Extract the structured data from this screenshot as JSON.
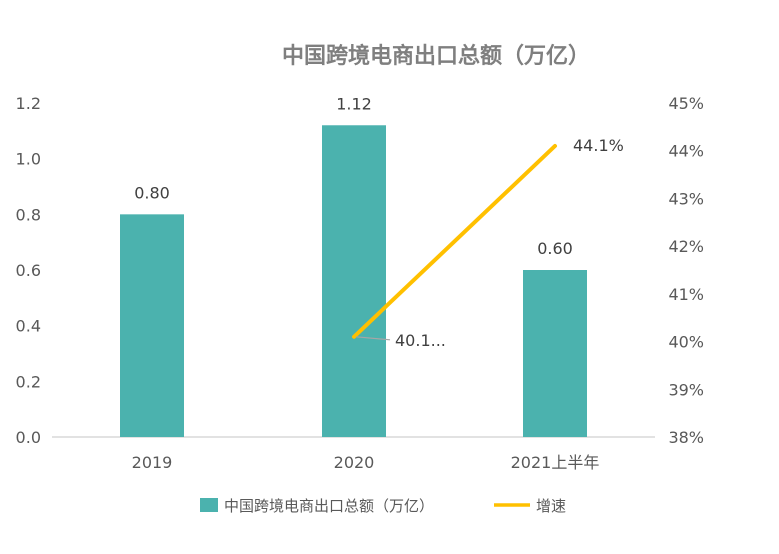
{
  "chart_data": {
    "type": "bar",
    "title": "中国跨境电商出口总额（万亿）",
    "categories": [
      "2019",
      "2020",
      "2021上半年"
    ],
    "series": [
      {
        "name": "中国跨境电商出口总额（万亿）",
        "type": "bar",
        "axis": "left",
        "values": [
          0.8,
          1.12,
          0.6
        ],
        "labels": [
          "0.80",
          "1.12",
          "0.60"
        ],
        "color": "#4bb2ae"
      },
      {
        "name": "增速",
        "type": "line",
        "axis": "right",
        "x": [
          "2020",
          "2021上半年"
        ],
        "values": [
          40.1,
          44.1
        ],
        "labels": [
          "40.1...",
          "44.1%"
        ],
        "color": "#ffc000"
      }
    ],
    "y_left": {
      "min": 0,
      "max": 1.2,
      "ticks": [
        "0.0",
        "0.2",
        "0.4",
        "0.6",
        "0.8",
        "1.0",
        "1.2"
      ]
    },
    "y_right": {
      "min": 38,
      "max": 45,
      "unit": "%",
      "ticks": [
        "38%",
        "39%",
        "40%",
        "41%",
        "42%",
        "43%",
        "44%",
        "45%"
      ]
    },
    "grid": false,
    "legend": "bottom"
  }
}
